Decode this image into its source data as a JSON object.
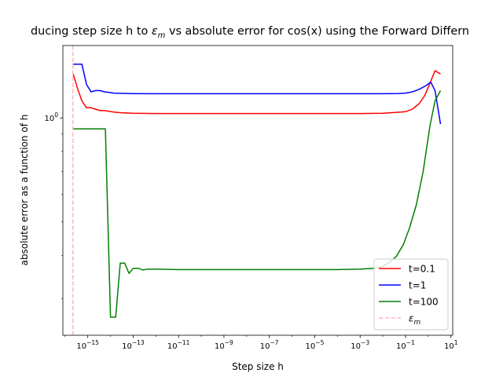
{
  "chart_data": {
    "type": "line",
    "title_main": "ducing step size h to ",
    "title_sym": "ε",
    "title_sub": "m",
    "title_tail": " vs absolute error for cos(x) using the Forward Differn",
    "xlabel": "Step size h",
    "ylabel": "absolute error as a function of h",
    "x_scale": "log",
    "y_scale": "log",
    "xlim": [
      8e-17,
      12
    ],
    "ylim": [
      0.235,
      1.62
    ],
    "x_ticks": [
      {
        "value": 1e-15,
        "base": "10",
        "exp": "−15"
      },
      {
        "value": 1e-13,
        "base": "10",
        "exp": "−13"
      },
      {
        "value": 1e-11,
        "base": "10",
        "exp": "−11"
      },
      {
        "value": 1e-09,
        "base": "10",
        "exp": "−9"
      },
      {
        "value": 1e-07,
        "base": "10",
        "exp": "−7"
      },
      {
        "value": 1e-05,
        "base": "10",
        "exp": "−5"
      },
      {
        "value": 0.001,
        "base": "10",
        "exp": "−3"
      },
      {
        "value": 0.1,
        "base": "10",
        "exp": "−1"
      },
      {
        "value": 10,
        "base": "10",
        "exp": "1"
      }
    ],
    "y_ticks": [
      {
        "value": 1.0,
        "base": "10",
        "exp": "0"
      }
    ],
    "grid": false,
    "legend_position": "lower-right",
    "series": [
      {
        "name": "t=0.1",
        "color": "#ff0000",
        "style": "solid",
        "x": [
          2.2e-16,
          3.5e-16,
          5.5e-16,
          8.8e-16,
          1.4e-15,
          2.2e-15,
          3.5e-15,
          5.5e-15,
          8.8e-15,
          1.4e-14,
          3e-14,
          1e-13,
          1e-12,
          1e-11,
          1e-09,
          1e-07,
          1e-05,
          0.0001,
          0.001,
          0.01,
          0.03,
          0.1,
          0.2,
          0.4,
          0.7,
          1.2,
          2,
          3.5
        ],
        "y": [
          1.35,
          1.22,
          1.12,
          1.07,
          1.07,
          1.06,
          1.05,
          1.05,
          1.045,
          1.04,
          1.035,
          1.032,
          1.03,
          1.03,
          1.03,
          1.03,
          1.03,
          1.03,
          1.03,
          1.032,
          1.036,
          1.043,
          1.06,
          1.1,
          1.16,
          1.26,
          1.37,
          1.34
        ]
      },
      {
        "name": "t=1",
        "color": "#0000ff",
        "style": "solid",
        "x": [
          2.2e-16,
          3.5e-16,
          5.5e-16,
          8.8e-16,
          1.4e-15,
          2.2e-15,
          3.5e-15,
          5.5e-15,
          8.8e-15,
          1.4e-14,
          3e-14,
          1e-13,
          1e-12,
          1e-11,
          1e-09,
          1e-07,
          1e-05,
          0.001,
          0.01,
          0.05,
          0.1,
          0.2,
          0.4,
          0.8,
          1.3,
          2,
          3.5
        ],
        "y": [
          1.43,
          1.43,
          1.43,
          1.25,
          1.19,
          1.2,
          1.2,
          1.19,
          1.185,
          1.18,
          1.178,
          1.176,
          1.175,
          1.175,
          1.175,
          1.175,
          1.175,
          1.175,
          1.175,
          1.177,
          1.18,
          1.19,
          1.21,
          1.24,
          1.27,
          1.2,
          0.96
        ]
      },
      {
        "name": "t=100",
        "color": "#008000",
        "style": "solid",
        "x": [
          2.2e-16,
          3.5e-16,
          5.5e-16,
          8.8e-16,
          1.4e-15,
          2.2e-15,
          3.5e-15,
          5.5e-15,
          6e-15,
          1e-14,
          1.7e-14,
          2.7e-14,
          4.2e-14,
          6.6e-14,
          1e-13,
          1.7e-13,
          2.7e-13,
          4.2e-13,
          1e-12,
          1e-11,
          1e-09,
          1e-07,
          1e-05,
          0.0001,
          0.001,
          0.004,
          0.01,
          0.02,
          0.04,
          0.08,
          0.15,
          0.3,
          0.6,
          1.2,
          2,
          3.5
        ],
        "y": [
          0.93,
          0.93,
          0.93,
          0.93,
          0.93,
          0.93,
          0.93,
          0.93,
          0.93,
          0.265,
          0.265,
          0.38,
          0.38,
          0.355,
          0.367,
          0.367,
          0.363,
          0.365,
          0.365,
          0.364,
          0.364,
          0.364,
          0.364,
          0.364,
          0.365,
          0.367,
          0.372,
          0.382,
          0.398,
          0.43,
          0.48,
          0.56,
          0.7,
          0.95,
          1.12,
          1.2
        ]
      },
      {
        "name": "ε",
        "name_sub": "m",
        "color": "#ffb6c1",
        "style": "dashed",
        "vline": 2.22e-16
      }
    ]
  }
}
